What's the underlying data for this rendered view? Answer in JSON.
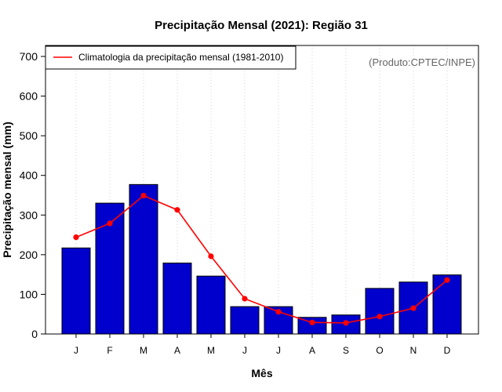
{
  "chart_data": {
    "type": "bar",
    "title": "Precipitação Mensal (2021): Região 31",
    "xlabel": "Mês",
    "ylabel": "Precipitação mensal (mm)",
    "ylim": [
      0,
      700
    ],
    "yticks": [
      0,
      100,
      200,
      300,
      400,
      500,
      600,
      700
    ],
    "categories": [
      "J",
      "F",
      "M",
      "A",
      "M",
      "J",
      "J",
      "A",
      "S",
      "O",
      "N",
      "D"
    ],
    "series": [
      {
        "name": "Precipitação mensal 2021",
        "type": "bar",
        "color": "#0000CC",
        "values": [
          217,
          330,
          377,
          179,
          146,
          69,
          69,
          42,
          48,
          115,
          131,
          149
        ]
      },
      {
        "name": "Climatologia da precipitação mensal (1981-2010)",
        "type": "line",
        "color": "#FF0000",
        "values": [
          244,
          279,
          349,
          313,
          196,
          89,
          56,
          29,
          28,
          44,
          65,
          136
        ]
      }
    ],
    "grid": "vertical-dotted",
    "legend": "top-left",
    "credit": "(Produto:CPTEC/INPE)"
  }
}
